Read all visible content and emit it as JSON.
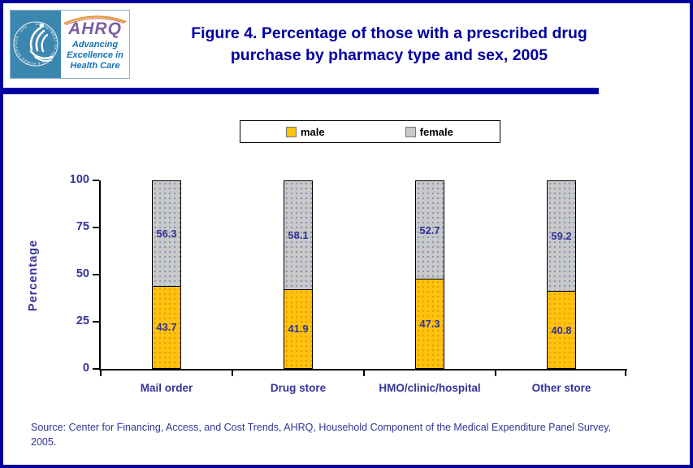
{
  "header": {
    "title_line1": "Figure 4. Percentage of those with a prescribed drug",
    "title_line2": "purchase by pharmacy type and sex, 2005",
    "logo": {
      "acronym": "AHRQ",
      "tagline": "Advancing Excellence in Health Care",
      "seal_text": "DEPARTMENT OF HEALTH & HUMAN SERVICES · USA"
    }
  },
  "legend": {
    "items": [
      {
        "label": "male",
        "color": "#FFC20E"
      },
      {
        "label": "female",
        "color": "#C9C9C9"
      }
    ]
  },
  "chart_data": {
    "type": "bar",
    "stacked": true,
    "title": "Figure 4. Percentage of those with a prescribed drug purchase by pharmacy type and sex, 2005",
    "categories": [
      "Mail order",
      "Drug store",
      "HMO/clinic/hospital",
      "Other store"
    ],
    "series": [
      {
        "name": "male",
        "color": "#FFC20E",
        "values": [
          43.7,
          41.9,
          47.3,
          40.8
        ]
      },
      {
        "name": "female",
        "color": "#C9C9C9",
        "values": [
          56.3,
          58.1,
          52.7,
          59.2
        ]
      }
    ],
    "xlabel": "",
    "ylabel": "Percentage",
    "ylim": [
      0,
      100
    ],
    "yticks": [
      0,
      25,
      50,
      75,
      100
    ],
    "grid": false,
    "legend_position": "top"
  },
  "source": {
    "line1": "Source: Center for Financing, Access, and Cost Trends, AHRQ, Household Component of the Medical Expenditure Panel Survey,",
    "line2": "2005."
  },
  "colors": {
    "page_border": "#00009C",
    "header_rule": "#0000A3",
    "title_text": "#0000A0",
    "chart_text": "#333399",
    "seal_background": "#3C87AF",
    "acronym_purple": "#7B5FA4",
    "tagline_blue": "#1573B6",
    "arc_orange": "#E39A3B"
  }
}
